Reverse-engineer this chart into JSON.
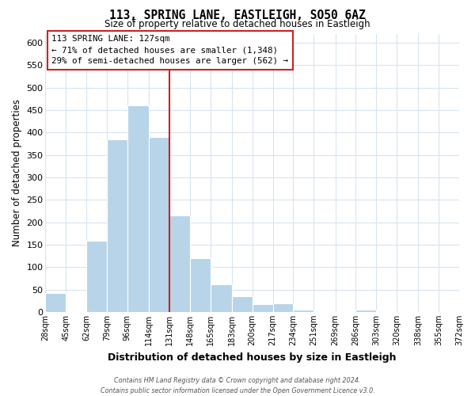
{
  "title": "113, SPRING LANE, EASTLEIGH, SO50 6AZ",
  "subtitle": "Size of property relative to detached houses in Eastleigh",
  "xlabel": "Distribution of detached houses by size in Eastleigh",
  "ylabel": "Number of detached properties",
  "bin_edges": [
    28,
    45,
    62,
    79,
    96,
    114,
    131,
    148,
    165,
    183,
    200,
    217,
    234,
    251,
    269,
    286,
    303,
    320,
    338,
    355,
    372
  ],
  "bin_counts": [
    42,
    0,
    158,
    385,
    460,
    390,
    215,
    120,
    62,
    35,
    17,
    20,
    6,
    0,
    0,
    5,
    0,
    0,
    0,
    0
  ],
  "bar_color": "#b8d4e8",
  "property_line_color": "#cc2222",
  "annotation_title": "113 SPRING LANE: 127sqm",
  "annotation_line1": "← 71% of detached houses are smaller (1,348)",
  "annotation_line2": "29% of semi-detached houses are larger (562) →",
  "annotation_box_facecolor": "white",
  "annotation_box_edgecolor": "#cc2222",
  "ylim": [
    0,
    620
  ],
  "yticks": [
    0,
    50,
    100,
    150,
    200,
    250,
    300,
    350,
    400,
    450,
    500,
    550,
    600
  ],
  "grid_color": "#d8e4ee",
  "background_color": "white",
  "footer1": "Contains HM Land Registry data © Crown copyright and database right 2024.",
  "footer2": "Contains public sector information licensed under the Open Government Licence v3.0."
}
